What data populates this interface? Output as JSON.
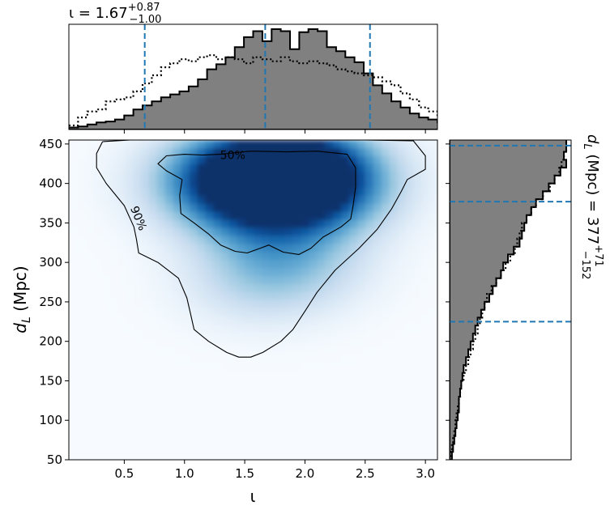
{
  "chart_data": [
    {
      "type": "heatmap",
      "panel": "joint",
      "xlabel": "ι",
      "ylabel": "d_L (Mpc)",
      "xlim": [
        0.04,
        3.1
      ],
      "ylim": [
        50,
        455
      ],
      "x_ticks": [
        0.5,
        1.0,
        1.5,
        2.0,
        2.5,
        3.0
      ],
      "x_tick_labels": [
        "0.5",
        "1.0",
        "1.5",
        "2.0",
        "2.5",
        "3.0"
      ],
      "y_ticks": [
        50,
        100,
        150,
        200,
        250,
        300,
        350,
        400,
        450
      ],
      "y_tick_labels": [
        "50",
        "100",
        "150",
        "200",
        "250",
        "300",
        "350",
        "400",
        "450"
      ],
      "colormap": "Blues",
      "density_peaks": [
        {
          "x": 1.95,
          "y": 420,
          "weight": 1.0
        },
        {
          "x": 1.55,
          "y": 415,
          "weight": 0.75
        },
        {
          "x": 1.25,
          "y": 400,
          "weight": 0.55
        },
        {
          "x": 1.7,
          "y": 360,
          "weight": 0.5
        },
        {
          "x": 2.2,
          "y": 395,
          "weight": 0.6
        },
        {
          "x": 1.6,
          "y": 280,
          "weight": 0.3
        },
        {
          "x": 2.0,
          "y": 300,
          "weight": 0.25
        }
      ],
      "contours": [
        {
          "label": "50%",
          "label_x": 1.4,
          "label_y": 436,
          "points": [
            [
              1.3,
              437
            ],
            [
              1.55,
              441
            ],
            [
              1.85,
              440
            ],
            [
              2.1,
              441
            ],
            [
              2.35,
              437
            ],
            [
              2.42,
              420
            ],
            [
              2.42,
              395
            ],
            [
              2.4,
              372
            ],
            [
              2.38,
              355
            ],
            [
              2.3,
              345
            ],
            [
              2.15,
              332
            ],
            [
              2.05,
              318
            ],
            [
              1.95,
              310
            ],
            [
              1.82,
              313
            ],
            [
              1.7,
              322
            ],
            [
              1.63,
              318
            ],
            [
              1.52,
              312
            ],
            [
              1.42,
              314
            ],
            [
              1.3,
              322
            ],
            [
              1.2,
              336
            ],
            [
              1.08,
              350
            ],
            [
              0.97,
              362
            ],
            [
              0.96,
              385
            ],
            [
              0.98,
              405
            ],
            [
              0.85,
              416
            ],
            [
              0.78,
              425
            ],
            [
              0.85,
              435
            ],
            [
              1.0,
              437
            ],
            [
              1.15,
              436
            ],
            [
              1.3,
              437
            ]
          ]
        },
        {
          "label": "90%",
          "label_x": 0.62,
          "label_y": 356,
          "points": [
            [
              0.32,
              453
            ],
            [
              0.55,
              455
            ],
            [
              1.0,
              455
            ],
            [
              1.5,
              455
            ],
            [
              2.0,
              455
            ],
            [
              2.5,
              455
            ],
            [
              2.9,
              454
            ],
            [
              3.0,
              435
            ],
            [
              3.0,
              418
            ],
            [
              2.85,
              405
            ],
            [
              2.8,
              390
            ],
            [
              2.72,
              368
            ],
            [
              2.6,
              342
            ],
            [
              2.45,
              318
            ],
            [
              2.25,
              290
            ],
            [
              2.1,
              262
            ],
            [
              2.0,
              238
            ],
            [
              1.9,
              215
            ],
            [
              1.8,
              200
            ],
            [
              1.65,
              186
            ],
            [
              1.55,
              180
            ],
            [
              1.45,
              180
            ],
            [
              1.35,
              186
            ],
            [
              1.2,
              200
            ],
            [
              1.08,
              215
            ],
            [
              1.05,
              235
            ],
            [
              1.02,
              255
            ],
            [
              0.95,
              280
            ],
            [
              0.78,
              300
            ],
            [
              0.62,
              312
            ],
            [
              0.6,
              330
            ],
            [
              0.58,
              345
            ],
            [
              0.5,
              372
            ],
            [
              0.35,
              400
            ],
            [
              0.27,
              420
            ],
            [
              0.27,
              438
            ],
            [
              0.32,
              453
            ]
          ]
        }
      ]
    },
    {
      "type": "histogram",
      "panel": "top-marginal",
      "title": "ι = 1.67",
      "title_main": "ι = 1.67",
      "title_sup": "+0.87",
      "title_sub": "−1.00",
      "xlim": [
        0.04,
        3.1
      ],
      "bin_edges_start": 0.04,
      "bin_width": 0.0765,
      "filled_counts": [
        2,
        3,
        5,
        7,
        8,
        10,
        14,
        20,
        24,
        28,
        32,
        35,
        38,
        43,
        50,
        60,
        65,
        72,
        82,
        92,
        98,
        88,
        100,
        98,
        80,
        97,
        100,
        98,
        82,
        78,
        72,
        67,
        56,
        44,
        36,
        28,
        22,
        16,
        12,
        10,
        7,
        6
      ],
      "dotted_counts": [
        4,
        12,
        18,
        20,
        28,
        30,
        32,
        38,
        46,
        54,
        62,
        66,
        70,
        68,
        72,
        74,
        70,
        72,
        70,
        66,
        72,
        70,
        68,
        72,
        68,
        66,
        68,
        66,
        64,
        60,
        58,
        56,
        54,
        52,
        48,
        44,
        36,
        30,
        22,
        18,
        12,
        6
      ],
      "quantile_lines": [
        0.67,
        1.67,
        2.54
      ],
      "line_color": "#1f77b4",
      "fill_color": "#808080"
    },
    {
      "type": "histogram",
      "panel": "right-marginal",
      "ylabel": "d_L (Mpc) = 377",
      "label_main": "d_L (Mpc) = 377",
      "label_sup": "+71",
      "label_sub": "−152",
      "ylim": [
        50,
        455
      ],
      "bin_edges_start": 50,
      "bin_width": 10,
      "filled_counts": [
        2,
        3,
        4,
        5,
        6,
        7,
        8,
        8,
        9,
        10,
        11,
        12,
        14,
        16,
        18,
        20,
        22,
        24,
        27,
        30,
        34,
        37,
        40,
        44,
        46,
        50,
        55,
        60,
        62,
        64,
        66,
        70,
        74,
        80,
        85,
        90,
        95,
        100,
        98,
        100,
        100
      ],
      "dotted_counts": [
        1,
        2,
        3,
        4,
        5,
        6,
        7,
        8,
        9,
        10,
        12,
        14,
        16,
        18,
        20,
        22,
        24,
        26,
        28,
        30,
        32,
        36,
        40,
        44,
        48,
        52,
        56,
        58,
        60,
        62,
        66,
        70,
        74,
        80,
        86,
        90,
        94,
        96,
        98,
        100,
        100
      ],
      "quantile_lines": [
        225,
        377,
        448
      ],
      "line_color": "#1f77b4",
      "fill_color": "#808080"
    }
  ],
  "chart_text": {
    "joint_xlabel": "ι",
    "joint_ylabel_main": "d",
    "joint_ylabel_sub": "L",
    "joint_ylabel_unit": " (Mpc)",
    "top_title_main": "ι = 1.67",
    "top_title_sup": "+0.87",
    "top_title_sub": "−1.00",
    "right_label_main": "d",
    "right_label_sub": "L",
    "right_label_rest": " (Mpc) = 377",
    "right_label_sup": "+71",
    "right_label_subq": "−152",
    "contour_50": "50%",
    "contour_90": "90%"
  }
}
